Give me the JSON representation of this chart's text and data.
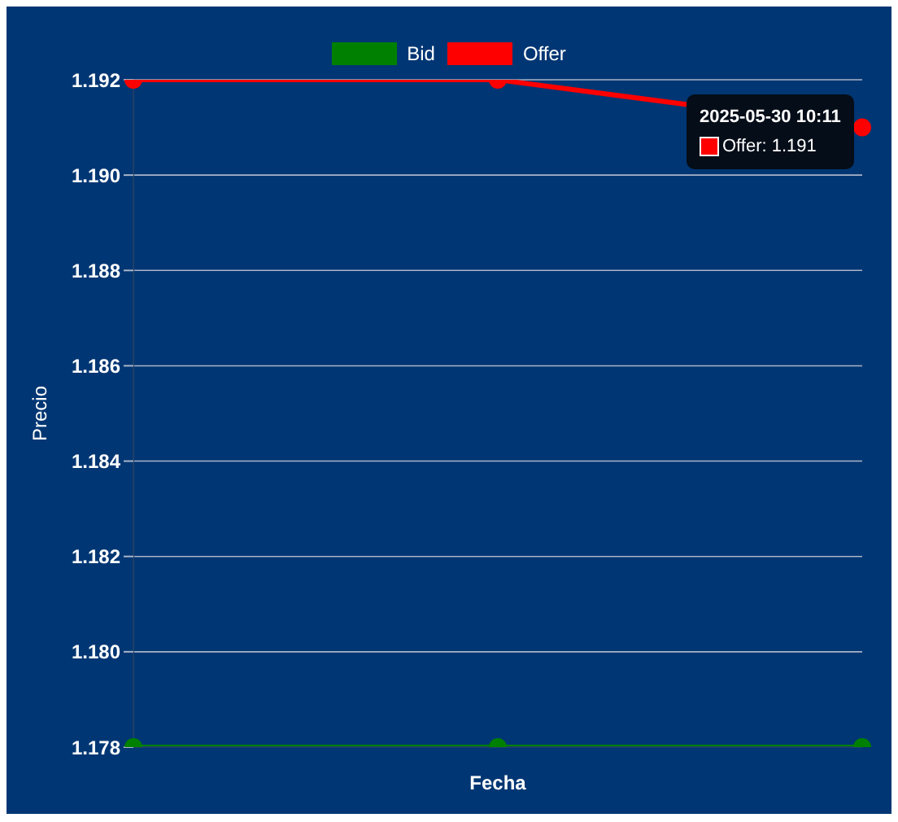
{
  "chart_data": {
    "type": "line",
    "xlabel": "Fecha",
    "ylabel": "Precio",
    "categories": [
      null,
      null,
      null
    ],
    "series": [
      {
        "name": "Bid",
        "color": "#008000",
        "values": [
          1.178,
          1.178,
          1.178
        ]
      },
      {
        "name": "Offer",
        "color": "#ff0000",
        "values": [
          1.192,
          1.192,
          1.191
        ]
      }
    ],
    "ylim": [
      1.178,
      1.192
    ],
    "yticks": [
      1.178,
      {
        "value": 1.18,
        "label": "1.180"
      },
      1.182,
      1.184,
      1.186,
      1.188,
      {
        "value": 1.19,
        "label": "1.190"
      },
      1.192
    ],
    "grid": "y",
    "legend": "top",
    "marker": "circle",
    "tick_labels": "y",
    "annotations": [
      "2025-05-30 10:11",
      "Offer: 1.191"
    ]
  }
}
